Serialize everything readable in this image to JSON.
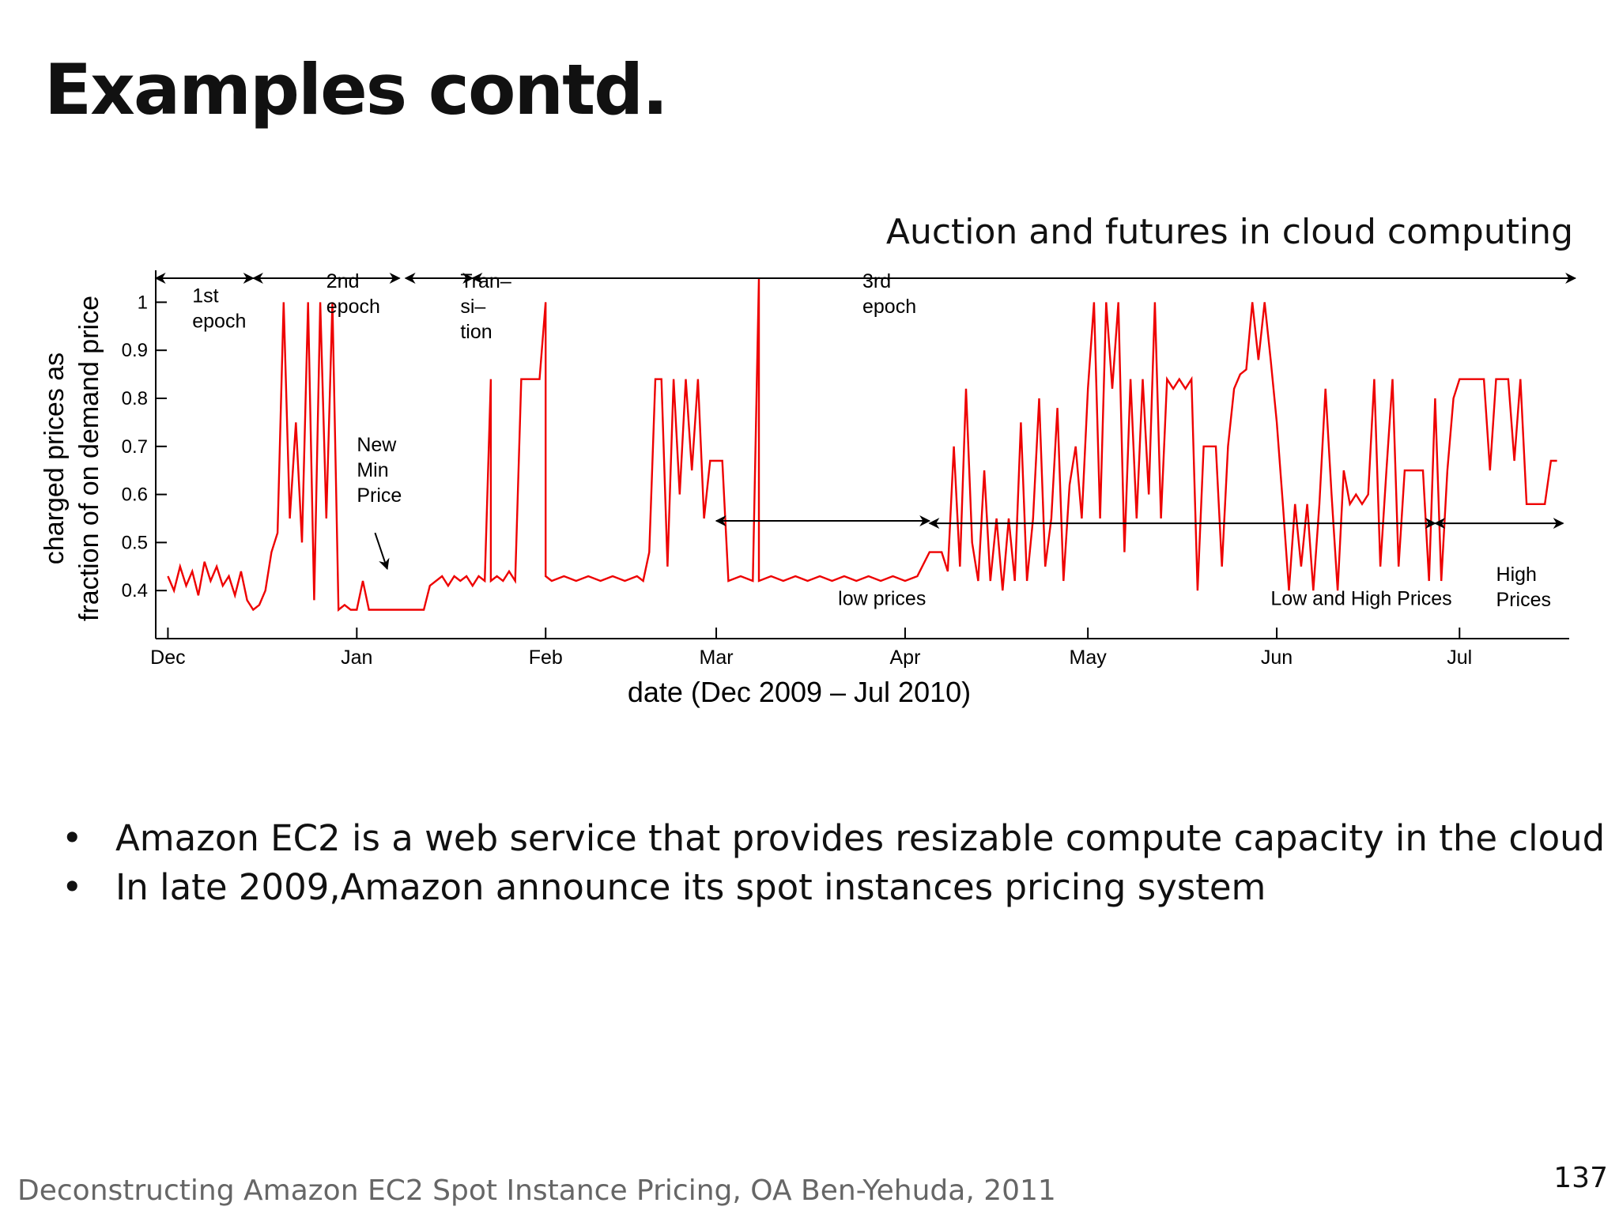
{
  "slide": {
    "title": "Examples contd.",
    "caption": "Auction and futures in cloud computing",
    "bullets": [
      "Amazon EC2 is a web service that provides resizable compute capacity in the cloud",
      "In late 2009,Amazon announce its spot instances pricing system"
    ],
    "citation": "Deconstructing Amazon EC2 Spot Instance Pricing, OA Ben-Yehuda, 2011",
    "page_number": "137"
  },
  "chart_data": {
    "type": "line",
    "title": "",
    "xlabel": "date (Dec 2009 – Jul 2010)",
    "ylabel_lines": [
      "charged prices as",
      "fraction of on demand price"
    ],
    "ylim": [
      0.3,
      1.05
    ],
    "yticks": [
      0.4,
      0.5,
      0.6,
      0.7,
      0.8,
      0.9,
      1
    ],
    "xlim": [
      "2009-11-29",
      "2010-07-19"
    ],
    "xticks": [
      {
        "label": "Dec",
        "date": "2009-12-01"
      },
      {
        "label": "Jan",
        "date": "2010-01-01"
      },
      {
        "label": "Feb",
        "date": "2010-02-01"
      },
      {
        "label": "Mar",
        "date": "2010-03-01"
      },
      {
        "label": "Apr",
        "date": "2010-04-01"
      },
      {
        "label": "May",
        "date": "2010-05-01"
      },
      {
        "label": "Jun",
        "date": "2010-06-01"
      },
      {
        "label": "Jul",
        "date": "2010-07-01"
      }
    ],
    "grid": false,
    "line_color": "#ee0000",
    "series": [
      {
        "name": "",
        "points": [
          [
            "2009-12-01",
            0.43
          ],
          [
            "2009-12-02",
            0.4
          ],
          [
            "2009-12-03",
            0.45
          ],
          [
            "2009-12-04",
            0.41
          ],
          [
            "2009-12-05",
            0.44
          ],
          [
            "2009-12-06",
            0.39
          ],
          [
            "2009-12-07",
            0.46
          ],
          [
            "2009-12-08",
            0.42
          ],
          [
            "2009-12-09",
            0.45
          ],
          [
            "2009-12-10",
            0.41
          ],
          [
            "2009-12-11",
            0.43
          ],
          [
            "2009-12-12",
            0.39
          ],
          [
            "2009-12-13",
            0.44
          ],
          [
            "2009-12-14",
            0.38
          ],
          [
            "2009-12-15",
            0.36
          ],
          [
            "2009-12-16",
            0.37
          ],
          [
            "2009-12-17",
            0.4
          ],
          [
            "2009-12-18",
            0.48
          ],
          [
            "2009-12-19",
            0.52
          ],
          [
            "2009-12-20",
            1.0
          ],
          [
            "2009-12-21",
            0.55
          ],
          [
            "2009-12-22",
            0.75
          ],
          [
            "2009-12-23",
            0.5
          ],
          [
            "2009-12-24",
            1.0
          ],
          [
            "2009-12-25",
            0.38
          ],
          [
            "2009-12-26",
            1.0
          ],
          [
            "2009-12-27",
            0.55
          ],
          [
            "2009-12-28",
            1.0
          ],
          [
            "2009-12-29",
            0.36
          ],
          [
            "2009-12-30",
            0.37
          ],
          [
            "2009-12-31",
            0.36
          ],
          [
            "2010-01-01",
            0.36
          ],
          [
            "2010-01-02",
            0.42
          ],
          [
            "2010-01-03",
            0.36
          ],
          [
            "2010-01-05",
            0.36
          ],
          [
            "2010-01-08",
            0.36
          ],
          [
            "2010-01-10",
            0.36
          ],
          [
            "2010-01-12",
            0.36
          ],
          [
            "2010-01-13",
            0.41
          ],
          [
            "2010-01-15",
            0.43
          ],
          [
            "2010-01-16",
            0.41
          ],
          [
            "2010-01-17",
            0.43
          ],
          [
            "2010-01-18",
            0.42
          ],
          [
            "2010-01-19",
            0.43
          ],
          [
            "2010-01-20",
            0.41
          ],
          [
            "2010-01-21",
            0.43
          ],
          [
            "2010-01-22",
            0.42
          ],
          [
            "2010-01-23",
            0.84
          ],
          [
            "2010-01-23",
            0.42
          ],
          [
            "2010-01-24",
            0.43
          ],
          [
            "2010-01-25",
            0.42
          ],
          [
            "2010-01-26",
            0.44
          ],
          [
            "2010-01-27",
            0.42
          ],
          [
            "2010-01-28",
            0.84
          ],
          [
            "2010-01-29",
            0.84
          ],
          [
            "2010-01-30",
            0.84
          ],
          [
            "2010-01-31",
            0.84
          ],
          [
            "2010-02-01",
            1.0
          ],
          [
            "2010-02-01",
            0.43
          ],
          [
            "2010-02-02",
            0.42
          ],
          [
            "2010-02-04",
            0.43
          ],
          [
            "2010-02-06",
            0.42
          ],
          [
            "2010-02-08",
            0.43
          ],
          [
            "2010-02-10",
            0.42
          ],
          [
            "2010-02-12",
            0.43
          ],
          [
            "2010-02-14",
            0.42
          ],
          [
            "2010-02-16",
            0.43
          ],
          [
            "2010-02-17",
            0.42
          ],
          [
            "2010-02-18",
            0.48
          ],
          [
            "2010-02-19",
            0.84
          ],
          [
            "2010-02-20",
            0.84
          ],
          [
            "2010-02-21",
            0.45
          ],
          [
            "2010-02-22",
            0.84
          ],
          [
            "2010-02-23",
            0.6
          ],
          [
            "2010-02-24",
            0.84
          ],
          [
            "2010-02-25",
            0.65
          ],
          [
            "2010-02-26",
            0.84
          ],
          [
            "2010-02-27",
            0.55
          ],
          [
            "2010-02-28",
            0.67
          ],
          [
            "2010-03-01",
            0.67
          ],
          [
            "2010-03-02",
            0.67
          ],
          [
            "2010-03-03",
            0.42
          ],
          [
            "2010-03-05",
            0.43
          ],
          [
            "2010-03-07",
            0.42
          ],
          [
            "2010-03-08",
            1.05
          ],
          [
            "2010-03-08",
            0.42
          ],
          [
            "2010-03-10",
            0.43
          ],
          [
            "2010-03-12",
            0.42
          ],
          [
            "2010-03-14",
            0.43
          ],
          [
            "2010-03-16",
            0.42
          ],
          [
            "2010-03-18",
            0.43
          ],
          [
            "2010-03-20",
            0.42
          ],
          [
            "2010-03-22",
            0.43
          ],
          [
            "2010-03-24",
            0.42
          ],
          [
            "2010-03-26",
            0.43
          ],
          [
            "2010-03-28",
            0.42
          ],
          [
            "2010-03-30",
            0.43
          ],
          [
            "2010-04-01",
            0.42
          ],
          [
            "2010-04-03",
            0.43
          ],
          [
            "2010-04-05",
            0.48
          ],
          [
            "2010-04-07",
            0.48
          ],
          [
            "2010-04-08",
            0.44
          ],
          [
            "2010-04-09",
            0.7
          ],
          [
            "2010-04-10",
            0.45
          ],
          [
            "2010-04-11",
            0.82
          ],
          [
            "2010-04-12",
            0.5
          ],
          [
            "2010-04-13",
            0.42
          ],
          [
            "2010-04-14",
            0.65
          ],
          [
            "2010-04-15",
            0.42
          ],
          [
            "2010-04-16",
            0.55
          ],
          [
            "2010-04-17",
            0.4
          ],
          [
            "2010-04-18",
            0.55
          ],
          [
            "2010-04-19",
            0.42
          ],
          [
            "2010-04-20",
            0.75
          ],
          [
            "2010-04-21",
            0.42
          ],
          [
            "2010-04-22",
            0.55
          ],
          [
            "2010-04-23",
            0.8
          ],
          [
            "2010-04-24",
            0.45
          ],
          [
            "2010-04-25",
            0.55
          ],
          [
            "2010-04-26",
            0.78
          ],
          [
            "2010-04-27",
            0.42
          ],
          [
            "2010-04-28",
            0.62
          ],
          [
            "2010-04-29",
            0.7
          ],
          [
            "2010-04-30",
            0.55
          ],
          [
            "2010-05-01",
            0.82
          ],
          [
            "2010-05-02",
            1.0
          ],
          [
            "2010-05-03",
            0.55
          ],
          [
            "2010-05-04",
            1.0
          ],
          [
            "2010-05-05",
            0.82
          ],
          [
            "2010-05-06",
            1.0
          ],
          [
            "2010-05-07",
            0.48
          ],
          [
            "2010-05-08",
            0.84
          ],
          [
            "2010-05-09",
            0.55
          ],
          [
            "2010-05-10",
            0.84
          ],
          [
            "2010-05-11",
            0.6
          ],
          [
            "2010-05-12",
            1.0
          ],
          [
            "2010-05-13",
            0.55
          ],
          [
            "2010-05-14",
            0.84
          ],
          [
            "2010-05-15",
            0.82
          ],
          [
            "2010-05-16",
            0.84
          ],
          [
            "2010-05-17",
            0.82
          ],
          [
            "2010-05-18",
            0.84
          ],
          [
            "2010-05-19",
            0.4
          ],
          [
            "2010-05-20",
            0.7
          ],
          [
            "2010-05-21",
            0.7
          ],
          [
            "2010-05-22",
            0.7
          ],
          [
            "2010-05-23",
            0.45
          ],
          [
            "2010-05-24",
            0.7
          ],
          [
            "2010-05-25",
            0.82
          ],
          [
            "2010-05-26",
            0.85
          ],
          [
            "2010-05-27",
            0.86
          ],
          [
            "2010-05-28",
            1.0
          ],
          [
            "2010-05-29",
            0.88
          ],
          [
            "2010-05-30",
            1.0
          ],
          [
            "2010-05-31",
            0.88
          ],
          [
            "2010-06-01",
            0.75
          ],
          [
            "2010-06-02",
            0.58
          ],
          [
            "2010-06-03",
            0.4
          ],
          [
            "2010-06-04",
            0.58
          ],
          [
            "2010-06-05",
            0.45
          ],
          [
            "2010-06-06",
            0.58
          ],
          [
            "2010-06-07",
            0.4
          ],
          [
            "2010-06-08",
            0.58
          ],
          [
            "2010-06-09",
            0.82
          ],
          [
            "2010-06-10",
            0.6
          ],
          [
            "2010-06-11",
            0.4
          ],
          [
            "2010-06-12",
            0.65
          ],
          [
            "2010-06-13",
            0.58
          ],
          [
            "2010-06-14",
            0.6
          ],
          [
            "2010-06-15",
            0.58
          ],
          [
            "2010-06-16",
            0.6
          ],
          [
            "2010-06-17",
            0.84
          ],
          [
            "2010-06-18",
            0.45
          ],
          [
            "2010-06-19",
            0.65
          ],
          [
            "2010-06-20",
            0.84
          ],
          [
            "2010-06-21",
            0.45
          ],
          [
            "2010-06-22",
            0.65
          ],
          [
            "2010-06-23",
            0.65
          ],
          [
            "2010-06-24",
            0.65
          ],
          [
            "2010-06-25",
            0.65
          ],
          [
            "2010-06-26",
            0.42
          ],
          [
            "2010-06-27",
            0.8
          ],
          [
            "2010-06-28",
            0.42
          ],
          [
            "2010-06-29",
            0.65
          ],
          [
            "2010-06-30",
            0.8
          ],
          [
            "2010-07-01",
            0.84
          ],
          [
            "2010-07-03",
            0.84
          ],
          [
            "2010-07-05",
            0.84
          ],
          [
            "2010-07-06",
            0.65
          ],
          [
            "2010-07-07",
            0.84
          ],
          [
            "2010-07-08",
            0.84
          ],
          [
            "2010-07-09",
            0.84
          ],
          [
            "2010-07-10",
            0.67
          ],
          [
            "2010-07-11",
            0.84
          ],
          [
            "2010-07-12",
            0.58
          ],
          [
            "2010-07-14",
            0.58
          ],
          [
            "2010-07-15",
            0.58
          ],
          [
            "2010-07-16",
            0.67
          ],
          [
            "2010-07-17",
            0.67
          ]
        ]
      }
    ],
    "annotations": [
      {
        "lines": [
          "1st",
          "epoch"
        ],
        "x": "2009-12-05",
        "y": 1.0
      },
      {
        "lines": [
          "2nd",
          "epoch"
        ],
        "x": "2009-12-27",
        "y": 1.03
      },
      {
        "lines": [
          "Tran–",
          "si–",
          "tion"
        ],
        "x": "2010-01-18",
        "y": 1.03
      },
      {
        "lines": [
          "3rd",
          "epoch"
        ],
        "x": "2010-03-25",
        "y": 1.03
      },
      {
        "lines": [
          "New",
          "Min",
          "Price"
        ],
        "x": "2010-01-01",
        "y": 0.69
      },
      {
        "lines": [
          "low prices"
        ],
        "x": "2010-03-21",
        "y": 0.37
      },
      {
        "lines": [
          "Low and High Prices"
        ],
        "x": "2010-05-31",
        "y": 0.37
      },
      {
        "lines": [
          "High",
          "Prices"
        ],
        "x": "2010-07-07",
        "y": 0.42
      }
    ],
    "spans": [
      {
        "from": "2009-11-29",
        "to": "2009-12-15",
        "y": 1.05,
        "heads": "both"
      },
      {
        "from": "2009-12-15",
        "to": "2010-01-08",
        "y": 1.05,
        "heads": "both"
      },
      {
        "from": "2010-01-09",
        "to": "2010-01-20",
        "y": 1.05,
        "heads": "both"
      },
      {
        "from": "2010-01-20",
        "to": "2010-07-20",
        "y": 1.05,
        "heads": "both"
      },
      {
        "from": "2010-03-01",
        "to": "2010-04-05",
        "y": 0.545,
        "heads": "both"
      },
      {
        "from": "2010-04-05",
        "to": "2010-06-27",
        "y": 0.54,
        "heads": "both"
      },
      {
        "from": "2010-06-27",
        "to": "2010-07-18",
        "y": 0.54,
        "heads": "both"
      }
    ],
    "pointer_arrows": [
      {
        "from_x": "2010-01-04",
        "from_y": 0.52,
        "to_x": "2010-01-06",
        "to_y": 0.445
      }
    ]
  }
}
